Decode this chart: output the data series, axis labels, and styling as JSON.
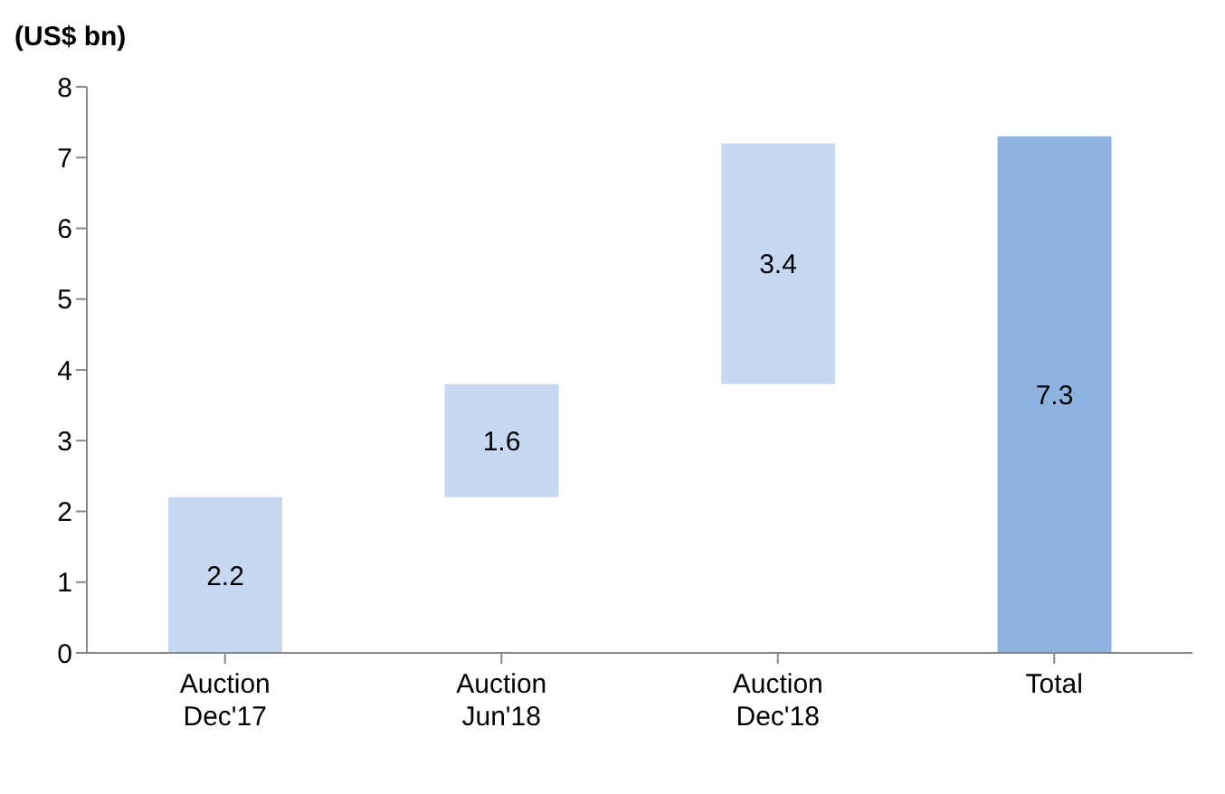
{
  "chart_data": {
    "type": "bar",
    "ylabel": "(US$ bn)",
    "categories": [
      "Auction\nDec'17",
      "Auction\nJun'18",
      "Auction\nDec'18",
      "Total"
    ],
    "values": [
      2.2,
      1.6,
      3.4,
      7.3
    ],
    "base": [
      0,
      2.2,
      3.8,
      0
    ],
    "colors": [
      "#c6d9f1",
      "#c6d9f1",
      "#c6d9f1",
      "#8db3e2"
    ],
    "ylim": [
      0,
      8
    ],
    "yticks": [
      0,
      1,
      2,
      3,
      4,
      5,
      6,
      7,
      8
    ],
    "data_labels": true,
    "grid": false,
    "legend": false
  }
}
